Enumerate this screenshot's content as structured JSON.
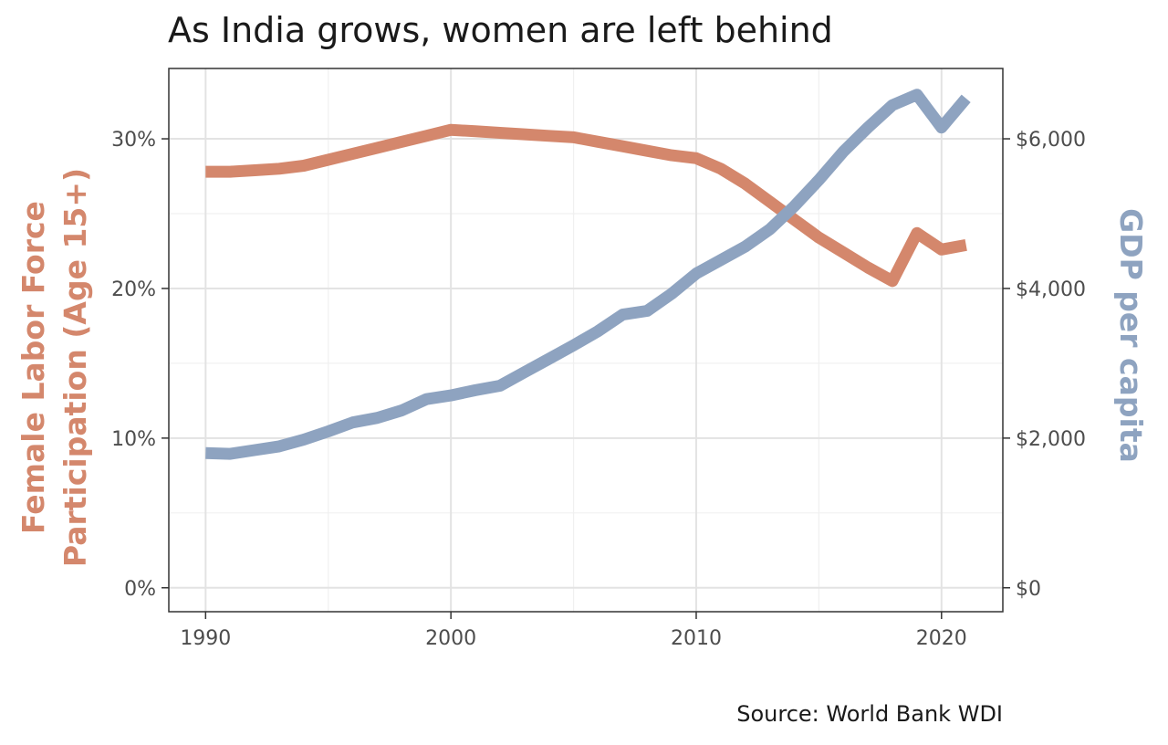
{
  "chart_data": {
    "type": "line",
    "title": "As India grows, women are left behind",
    "caption": "Source: World Bank WDI",
    "xlabel": "",
    "xlim": [
      1988.5,
      2022.5
    ],
    "x_ticks": [
      1990,
      2000,
      2010,
      2020
    ],
    "x_tick_labels": [
      "1990",
      "2000",
      "2010",
      "2020"
    ],
    "ylabel_left": "Female Labor Force\nParticipation (Age 15+)",
    "ylim_left": [
      -1.6,
      34.7
    ],
    "y_ticks_left": [
      0,
      10,
      20,
      30
    ],
    "y_tick_labels_left": [
      "0%",
      "10%",
      "20%",
      "30%"
    ],
    "ylabel_right": "GDP per capita",
    "ylim_right": [
      -320,
      6940
    ],
    "y_ticks_right": [
      0,
      2000,
      4000,
      6000
    ],
    "y_tick_labels_right": [
      "$0",
      "$2,000",
      "$4,000",
      "$6,000"
    ],
    "grid": true,
    "series": [
      {
        "name": "Female Labor Force Participation (Age 15+)",
        "axis": "left",
        "color": "#d4876c",
        "x": [
          1990,
          1991,
          1992,
          1993,
          1994,
          1995,
          1996,
          1997,
          1998,
          1999,
          2000,
          2001,
          2002,
          2003,
          2004,
          2005,
          2006,
          2007,
          2008,
          2009,
          2010,
          2011,
          2012,
          2013,
          2014,
          2015,
          2016,
          2017,
          2018,
          2019,
          2020,
          2021
        ],
        "values": [
          27.8,
          27.8,
          27.9,
          28.0,
          28.2,
          28.6,
          29.0,
          29.4,
          29.8,
          30.2,
          30.6,
          30.5,
          30.4,
          30.3,
          30.2,
          30.1,
          29.8,
          29.5,
          29.2,
          28.9,
          28.7,
          28.0,
          27.0,
          25.8,
          24.6,
          23.4,
          22.4,
          21.4,
          20.5,
          23.7,
          22.6,
          22.9
        ]
      },
      {
        "name": "GDP per capita",
        "axis": "right",
        "color": "#8ea3c0",
        "x": [
          1990,
          1991,
          1992,
          1993,
          1994,
          1995,
          1996,
          1997,
          1998,
          1999,
          2000,
          2001,
          2002,
          2003,
          2004,
          2005,
          2006,
          2007,
          2008,
          2009,
          2010,
          2011,
          2012,
          2013,
          2014,
          2015,
          2016,
          2017,
          2018,
          2019,
          2020,
          2021
        ],
        "values": [
          1800,
          1790,
          1840,
          1890,
          1980,
          2090,
          2210,
          2270,
          2370,
          2520,
          2570,
          2640,
          2700,
          2880,
          3060,
          3240,
          3430,
          3650,
          3700,
          3930,
          4200,
          4380,
          4560,
          4790,
          5100,
          5450,
          5830,
          6150,
          6450,
          6590,
          6150,
          6540
        ]
      }
    ]
  }
}
